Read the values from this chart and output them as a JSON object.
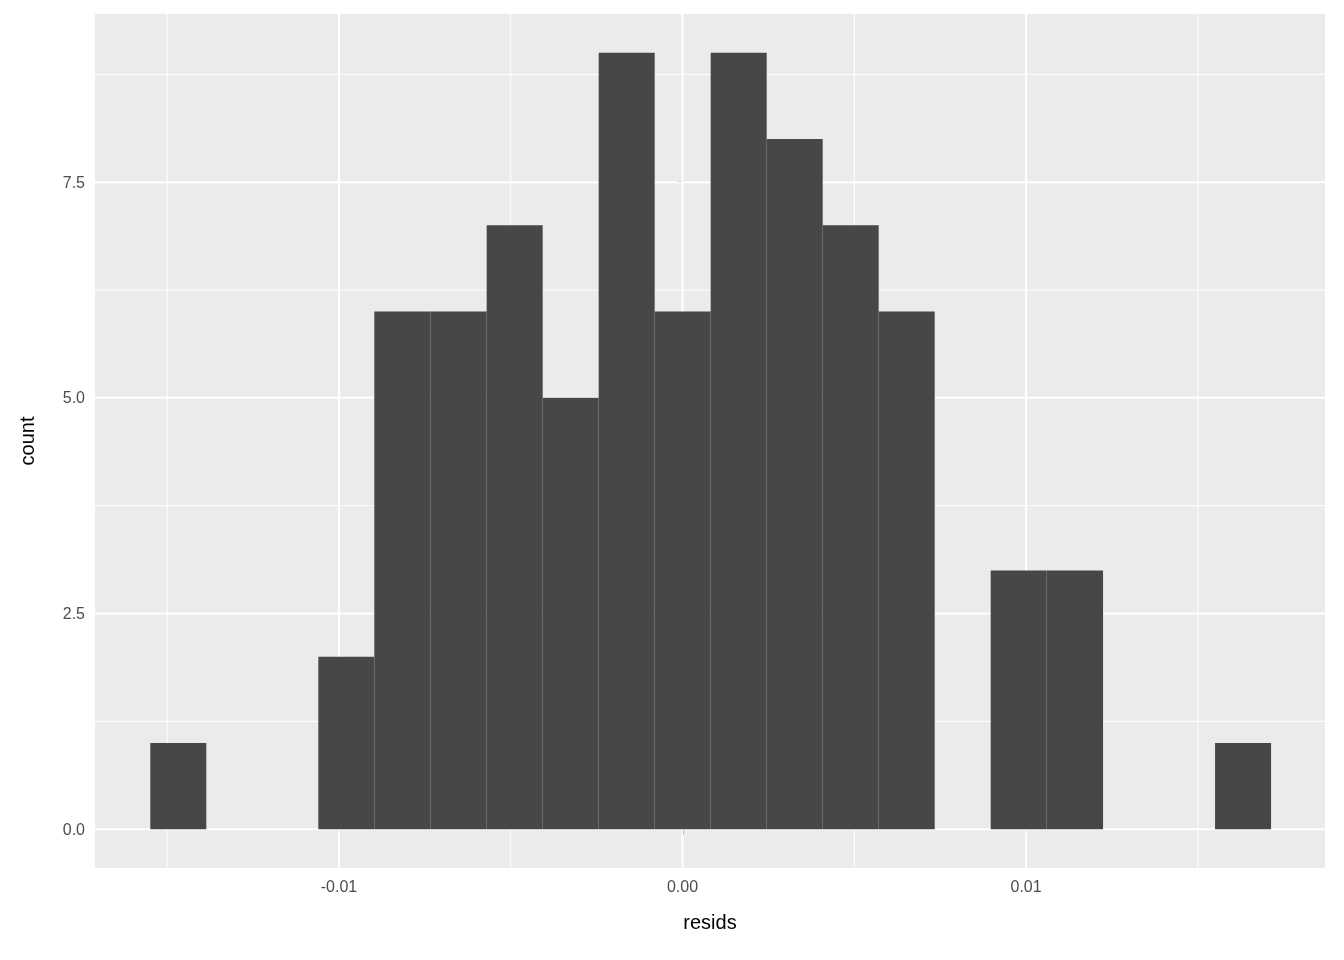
{
  "chart_data": {
    "type": "histogram",
    "xlabel": "resids",
    "ylabel": "count",
    "color": "#474747",
    "bins": [
      -0.01549,
      -0.01386,
      -0.01223,
      -0.0106,
      -0.00897,
      -0.00734,
      -0.0057,
      -0.00407,
      -0.00244,
      -0.00081,
      0.00082,
      0.00245,
      0.00408,
      0.00571,
      0.00734,
      0.00897,
      0.0106,
      0.01224,
      0.01387,
      0.0155,
      0.01713
    ],
    "values": [
      1,
      0,
      0,
      2,
      6,
      6,
      7,
      5,
      9,
      6,
      9,
      8,
      7,
      6,
      0,
      3,
      3,
      0,
      0,
      1
    ],
    "xlim": [
      -0.0171,
      0.0187
    ],
    "xticks": [
      {
        "value": -0.015,
        "label": null
      },
      {
        "value": -0.01,
        "label": "-0.01"
      },
      {
        "value": -0.005,
        "label": null
      },
      {
        "value": 0,
        "label": "0.00"
      },
      {
        "value": 0.005,
        "label": null
      },
      {
        "value": 0.01,
        "label": "0.01"
      },
      {
        "value": 0.015,
        "label": null
      }
    ],
    "ylim": [
      -0.45,
      9.45
    ],
    "yticks": [
      {
        "value": 0,
        "label": "0.0"
      },
      {
        "value": 1.25,
        "label": null
      },
      {
        "value": 2.5,
        "label": "2.5"
      },
      {
        "value": 3.75,
        "label": null
      },
      {
        "value": 5,
        "label": "5.0"
      },
      {
        "value": 6.25,
        "label": null
      },
      {
        "value": 7.5,
        "label": "7.5"
      },
      {
        "value": 8.75,
        "label": null
      }
    ],
    "grid": true
  }
}
